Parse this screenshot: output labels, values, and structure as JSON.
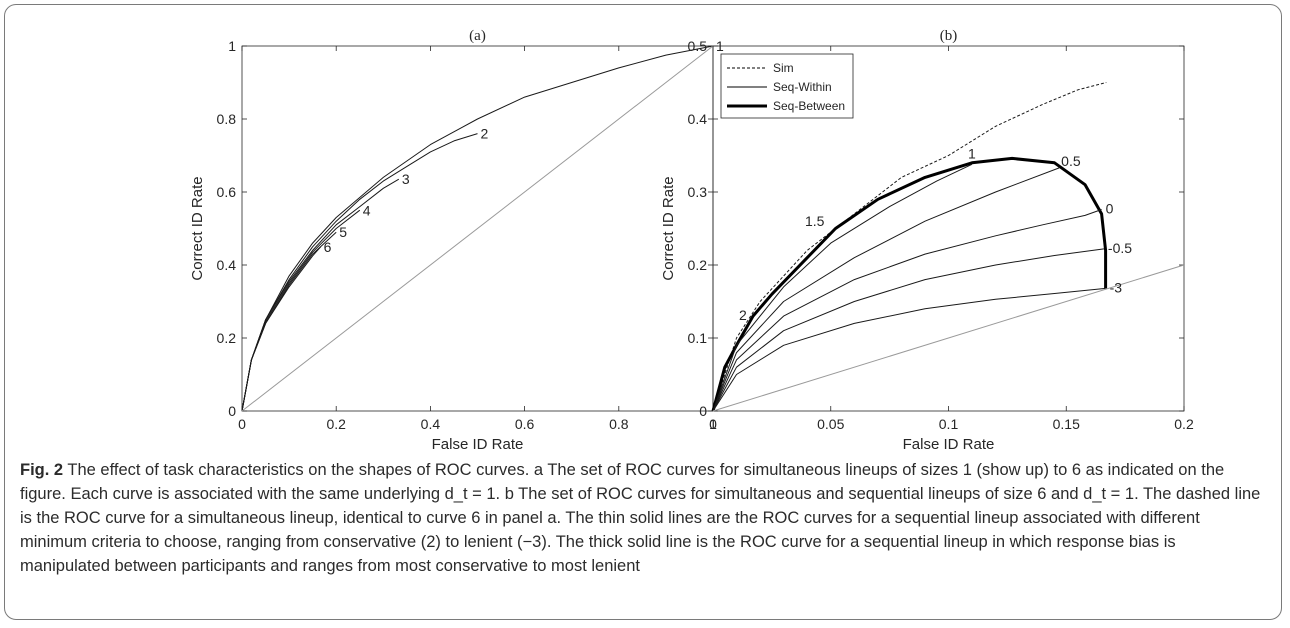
{
  "caption": {
    "label": "Fig. 2",
    "text": "The effect of task characteristics on the shapes of ROC curves. a The set of ROC curves for simultaneous lineups of sizes 1 (show up) to 6 as indicated on the figure. Each curve is associated with the same underlying d_t = 1. b The set of ROC curves for simultaneous and sequential lineups of size 6 and d_t = 1. The dashed line is the ROC curve for a simultaneous lineup, identical to curve 6 in panel a. The thin solid lines are the ROC curves for a sequential lineup associated with different minimum criteria to choose, ranging from conservative (2) to lenient (−3). The thick solid line is the ROC curve for a sequential lineup in which response bias is manipulated between participants and ranges from most conservative to most lenient"
  },
  "chart_data": [
    {
      "panel": "(a)",
      "type": "line",
      "xlabel": "False ID Rate",
      "ylabel": "Correct ID Rate",
      "xlim": [
        0,
        1
      ],
      "ylim": [
        0,
        1
      ],
      "xticks": [
        "0",
        "0.2",
        "0.4",
        "0.6",
        "0.8",
        "1"
      ],
      "yticks": [
        "0",
        "0.2",
        "0.4",
        "0.6",
        "0.8",
        "1"
      ],
      "series": [
        {
          "name": "1",
          "x": [
            0,
            0.02,
            0.05,
            0.1,
            0.15,
            0.2,
            0.3,
            0.4,
            0.5,
            0.6,
            0.7,
            0.8,
            0.9,
            1.0
          ],
          "y": [
            0,
            0.14,
            0.25,
            0.37,
            0.46,
            0.53,
            0.64,
            0.73,
            0.8,
            0.86,
            0.9,
            0.94,
            0.975,
            1.0
          ]
        },
        {
          "name": "2",
          "x": [
            0,
            0.02,
            0.05,
            0.1,
            0.15,
            0.2,
            0.25,
            0.3,
            0.35,
            0.4,
            0.45,
            0.5
          ],
          "y": [
            0,
            0.14,
            0.25,
            0.36,
            0.45,
            0.52,
            0.58,
            0.63,
            0.67,
            0.71,
            0.74,
            0.76
          ]
        },
        {
          "name": "3",
          "x": [
            0,
            0.02,
            0.05,
            0.1,
            0.15,
            0.2,
            0.25,
            0.3,
            0.333
          ],
          "y": [
            0,
            0.14,
            0.25,
            0.355,
            0.44,
            0.51,
            0.56,
            0.61,
            0.635
          ]
        },
        {
          "name": "4",
          "x": [
            0,
            0.02,
            0.05,
            0.1,
            0.15,
            0.2,
            0.25
          ],
          "y": [
            0,
            0.14,
            0.245,
            0.35,
            0.435,
            0.5,
            0.55
          ]
        },
        {
          "name": "5",
          "x": [
            0,
            0.02,
            0.05,
            0.1,
            0.15,
            0.2
          ],
          "y": [
            0,
            0.14,
            0.24,
            0.345,
            0.43,
            0.49
          ]
        },
        {
          "name": "6",
          "x": [
            0,
            0.02,
            0.05,
            0.1,
            0.15,
            0.167
          ],
          "y": [
            0,
            0.14,
            0.24,
            0.34,
            0.425,
            0.45
          ]
        },
        {
          "name": "chance",
          "x": [
            0,
            1
          ],
          "y": [
            0,
            1
          ]
        }
      ],
      "grid": false
    },
    {
      "panel": "(b)",
      "type": "line",
      "xlabel": "False ID Rate",
      "ylabel": "Correct ID Rate",
      "xlim": [
        0,
        0.2
      ],
      "ylim": [
        0,
        0.5
      ],
      "xticks": [
        "0",
        "0.05",
        "0.1",
        "0.15",
        "0.2"
      ],
      "yticks": [
        "0",
        "0.1",
        "0.2",
        "0.3",
        "0.4",
        "0.5"
      ],
      "legend": {
        "position": "top-left",
        "entries": [
          "Sim",
          "Seq-Within",
          "Seq-Between"
        ]
      },
      "series": [
        {
          "name": "Sim",
          "style": "dashed",
          "x": [
            0,
            0.01,
            0.02,
            0.04,
            0.06,
            0.08,
            0.1,
            0.12,
            0.14,
            0.155,
            0.167
          ],
          "y": [
            0,
            0.1,
            0.15,
            0.22,
            0.27,
            0.32,
            0.35,
            0.39,
            0.42,
            0.44,
            0.45
          ]
        },
        {
          "name": "Seq-Between",
          "style": "thick",
          "x": [
            0,
            0.005,
            0.01,
            0.017,
            0.025,
            0.04,
            0.052,
            0.07,
            0.09,
            0.11,
            0.127,
            0.145,
            0.158,
            0.165,
            0.1667,
            0.1667
          ],
          "y": [
            0,
            0.06,
            0.09,
            0.13,
            0.16,
            0.21,
            0.25,
            0.29,
            0.32,
            0.34,
            0.346,
            0.34,
            0.31,
            0.27,
            0.22,
            0.168
          ]
        },
        {
          "name": "Seq-Within 1",
          "style": "thin",
          "x": [
            0,
            0.01,
            0.03,
            0.05,
            0.075,
            0.095,
            0.11
          ],
          "y": [
            0,
            0.09,
            0.17,
            0.23,
            0.28,
            0.315,
            0.338
          ]
        },
        {
          "name": "Seq-Within 0.5",
          "style": "thin",
          "x": [
            0,
            0.01,
            0.03,
            0.06,
            0.09,
            0.12,
            0.147
          ],
          "y": [
            0,
            0.08,
            0.15,
            0.21,
            0.26,
            0.3,
            0.333
          ]
        },
        {
          "name": "Seq-Within 0",
          "style": "thin",
          "x": [
            0,
            0.01,
            0.03,
            0.06,
            0.09,
            0.12,
            0.14,
            0.158,
            0.165
          ],
          "y": [
            0,
            0.07,
            0.13,
            0.18,
            0.215,
            0.24,
            0.255,
            0.268,
            0.276
          ]
        },
        {
          "name": "Seq-Within -0.5",
          "style": "thin",
          "x": [
            0,
            0.01,
            0.03,
            0.06,
            0.09,
            0.12,
            0.145,
            0.166
          ],
          "y": [
            0,
            0.06,
            0.11,
            0.15,
            0.18,
            0.2,
            0.213,
            0.222
          ]
        },
        {
          "name": "Seq-Within -3",
          "style": "thin",
          "x": [
            0,
            0.01,
            0.03,
            0.06,
            0.09,
            0.12,
            0.145,
            0.1667
          ],
          "y": [
            0,
            0.05,
            0.09,
            0.12,
            0.14,
            0.153,
            0.161,
            0.168
          ]
        },
        {
          "name": "chance",
          "style": "gray",
          "x": [
            0,
            0.2
          ],
          "y": [
            0,
            0.2
          ]
        }
      ],
      "annotations": [
        {
          "text": "1.5",
          "x": 0.045,
          "y": 0.245
        },
        {
          "text": "2",
          "x": 0.017,
          "y": 0.13
        },
        {
          "text": "1",
          "x": 0.11,
          "y": 0.338
        },
        {
          "text": "0.5",
          "x": 0.147,
          "y": 0.333
        },
        {
          "text": "0",
          "x": 0.165,
          "y": 0.276
        },
        {
          "text": "-0.5",
          "x": 0.166,
          "y": 0.222
        },
        {
          "text": "-3",
          "x": 0.1667,
          "y": 0.168
        }
      ],
      "grid": false
    }
  ]
}
